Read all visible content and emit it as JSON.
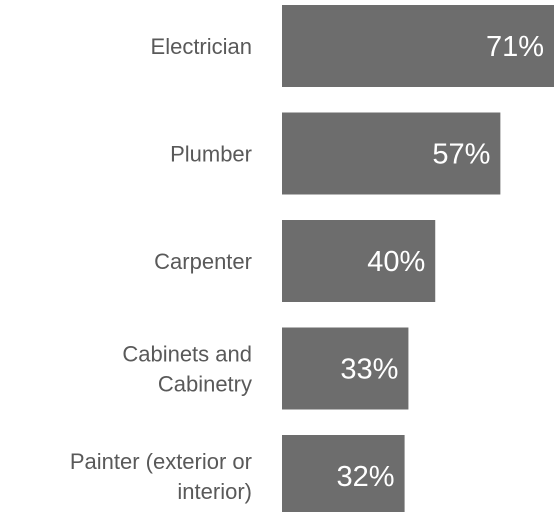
{
  "chart_data": {
    "type": "bar",
    "orientation": "horizontal",
    "categories": [
      [
        "Electrician"
      ],
      [
        "Plumber"
      ],
      [
        "Carpenter"
      ],
      [
        "Cabinets and",
        "Cabinetry"
      ],
      [
        "Painter (exterior or",
        "interior)"
      ]
    ],
    "values": [
      71,
      57,
      40,
      33,
      32
    ],
    "value_labels": [
      "71%",
      "57%",
      "40%",
      "33%",
      "32%"
    ],
    "unit": "%",
    "xlim": [
      0,
      71
    ],
    "grid": false,
    "legend": "none",
    "bar_color": "#6d6d6d",
    "value_label_color": "#ffffff",
    "category_label_color": "#595959"
  }
}
